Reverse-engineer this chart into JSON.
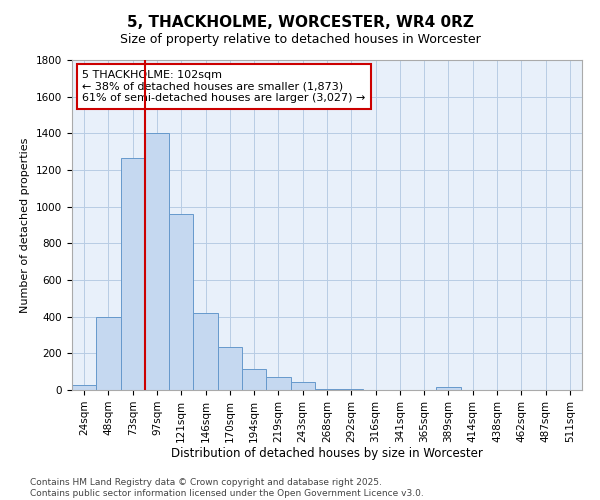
{
  "title": "5, THACKHOLME, WORCESTER, WR4 0RZ",
  "subtitle": "Size of property relative to detached houses in Worcester",
  "xlabel": "Distribution of detached houses by size in Worcester",
  "ylabel": "Number of detached properties",
  "categories": [
    "24sqm",
    "48sqm",
    "73sqm",
    "97sqm",
    "121sqm",
    "146sqm",
    "170sqm",
    "194sqm",
    "219sqm",
    "243sqm",
    "268sqm",
    "292sqm",
    "316sqm",
    "341sqm",
    "365sqm",
    "389sqm",
    "414sqm",
    "438sqm",
    "462sqm",
    "487sqm",
    "511sqm"
  ],
  "values": [
    25,
    400,
    1265,
    1400,
    960,
    420,
    235,
    115,
    70,
    45,
    5,
    5,
    0,
    0,
    0,
    15,
    0,
    0,
    0,
    0,
    0
  ],
  "bar_color": "#c5d8f0",
  "bar_edge_color": "#6699cc",
  "background_color": "#e8f0fa",
  "grid_color": "#b8cce4",
  "ylim": [
    0,
    1800
  ],
  "yticks": [
    0,
    200,
    400,
    600,
    800,
    1000,
    1200,
    1400,
    1600,
    1800
  ],
  "property_line_color": "#cc0000",
  "property_line_index": 3,
  "annotation_line1": "5 THACKHOLME: 102sqm",
  "annotation_line2": "← 38% of detached houses are smaller (1,873)",
  "annotation_line3": "61% of semi-detached houses are larger (3,027) →",
  "annotation_box_color": "#cc0000",
  "footer_line1": "Contains HM Land Registry data © Crown copyright and database right 2025.",
  "footer_line2": "Contains public sector information licensed under the Open Government Licence v3.0.",
  "title_fontsize": 11,
  "subtitle_fontsize": 9,
  "annotation_fontsize": 8,
  "tick_fontsize": 7.5,
  "ylabel_fontsize": 8,
  "xlabel_fontsize": 8.5,
  "footer_fontsize": 6.5
}
